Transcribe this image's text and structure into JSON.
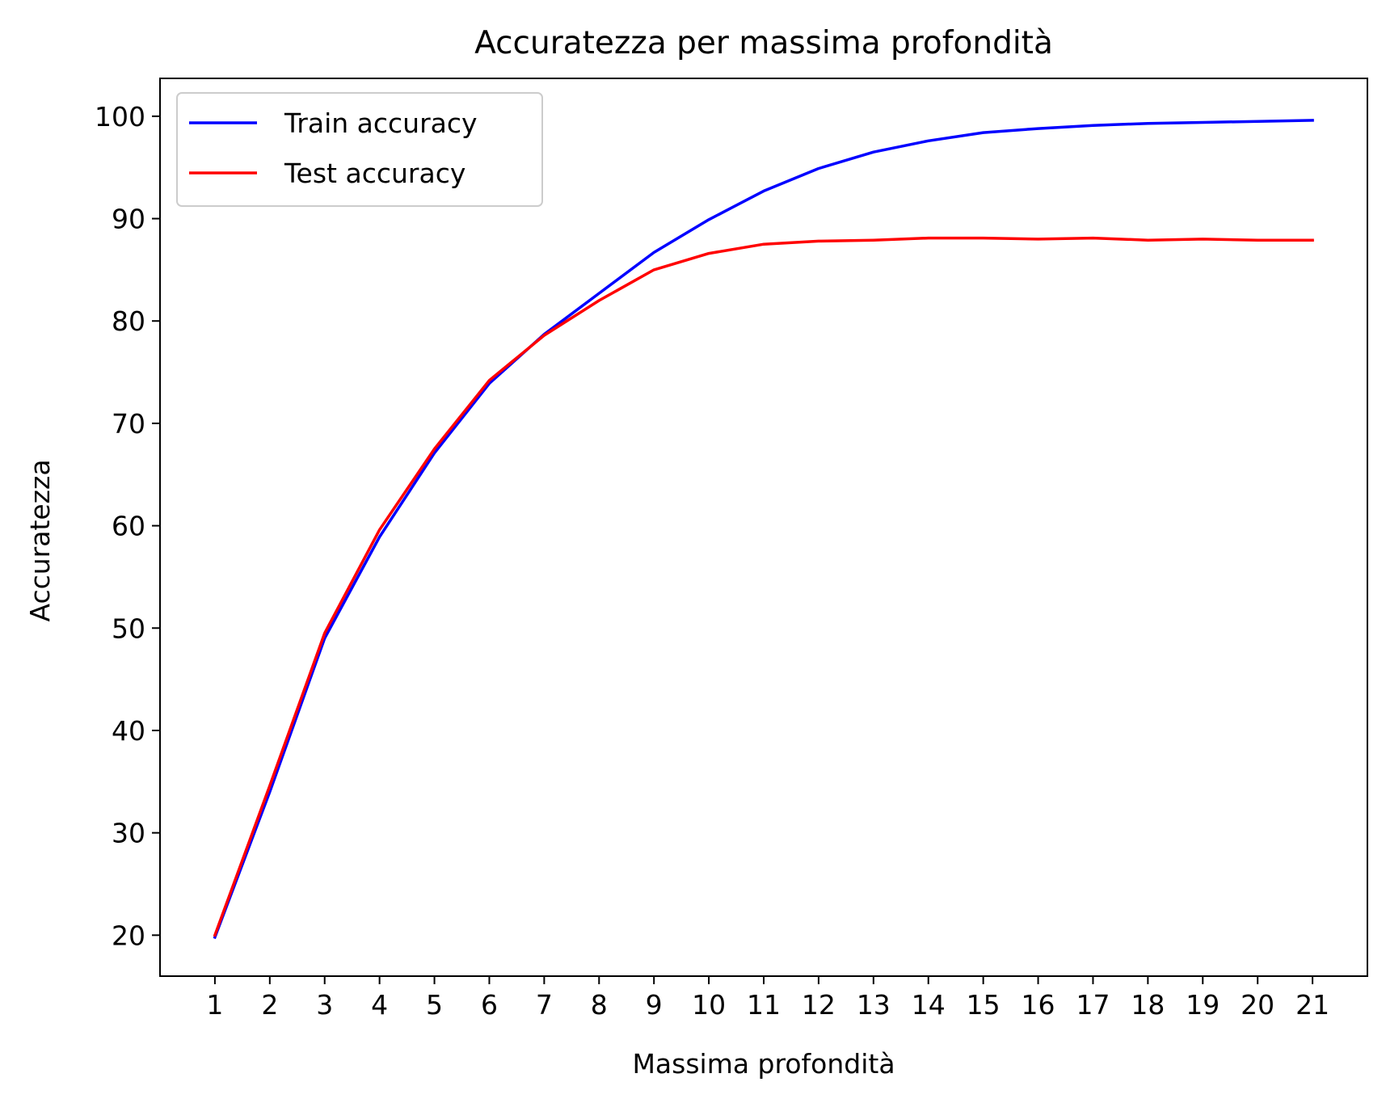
{
  "chart_data": {
    "type": "line",
    "title": "Accuratezza per massima profondità",
    "xlabel": "Massima profondità",
    "ylabel": "Accuratezza",
    "x": [
      1,
      2,
      3,
      4,
      5,
      6,
      7,
      8,
      9,
      10,
      11,
      12,
      13,
      14,
      15,
      16,
      17,
      18,
      19,
      20,
      21
    ],
    "xticks": [
      "1",
      "2",
      "3",
      "4",
      "5",
      "6",
      "7",
      "8",
      "9",
      "10",
      "11",
      "12",
      "13",
      "14",
      "15",
      "16",
      "17",
      "18",
      "19",
      "20",
      "21"
    ],
    "yticks": [
      20,
      30,
      40,
      50,
      60,
      70,
      80,
      90,
      100
    ],
    "ytick_labels": [
      "20",
      "30",
      "40",
      "50",
      "60",
      "70",
      "80",
      "90",
      "100"
    ],
    "xlim": [
      0,
      22
    ],
    "ylim": [
      16,
      103.7
    ],
    "grid": false,
    "legend_position": "top-left",
    "series": [
      {
        "name": "Train accuracy",
        "color": "#0000ff",
        "values": [
          19.8,
          34.0,
          49.0,
          58.9,
          67.1,
          73.9,
          78.7,
          82.7,
          86.7,
          89.9,
          92.7,
          94.9,
          96.5,
          97.6,
          98.4,
          98.8,
          99.1,
          99.3,
          99.4,
          99.5,
          99.6
        ]
      },
      {
        "name": "Test accuracy",
        "color": "#ff0000",
        "values": [
          20.0,
          34.6,
          49.5,
          59.6,
          67.5,
          74.2,
          78.6,
          82.0,
          85.0,
          86.6,
          87.5,
          87.8,
          87.9,
          88.1,
          88.1,
          88.0,
          88.1,
          87.9,
          88.0,
          87.9,
          87.9
        ]
      }
    ]
  }
}
